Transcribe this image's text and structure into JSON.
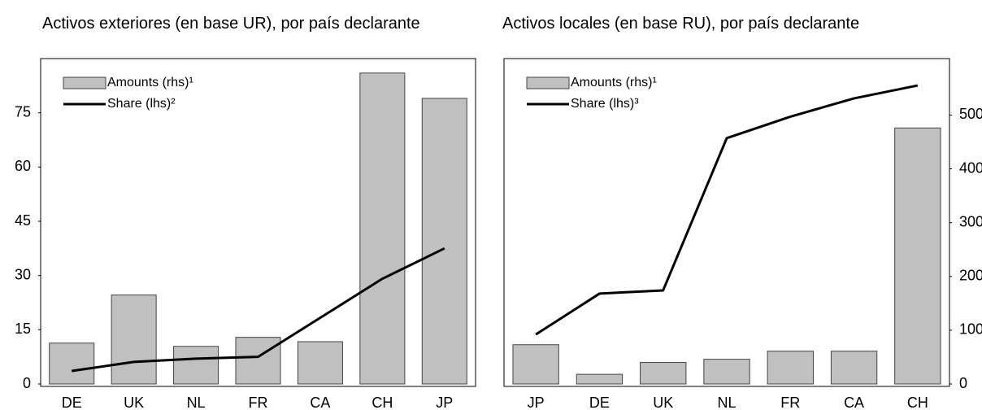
{
  "chart_data": [
    {
      "type": "combo",
      "title": "Activos exteriores (en base UR), por país declarante",
      "categories": [
        "DE",
        "UK",
        "NL",
        "FR",
        "CA",
        "CH",
        "JP"
      ],
      "series": [
        {
          "name": "Amounts (rhs)¹",
          "type": "bar",
          "color": "#c0c0c0",
          "values": [
            11.3,
            24.6,
            10.4,
            12.9,
            11.7,
            86,
            79
          ]
        },
        {
          "name": "Share (lhs)²",
          "type": "line",
          "color": "#000000",
          "values": [
            3.6,
            6.1,
            7.0,
            7.5,
            18.3,
            29.1,
            37.5
          ]
        }
      ],
      "ylim": [
        0,
        90
      ],
      "yticks": [
        0,
        15,
        30,
        45,
        60,
        75
      ],
      "axis_side": "left",
      "legend": "upper left"
    },
    {
      "type": "combo",
      "title": "Activos locales (en base RU), por país declarante",
      "categories": [
        "JP",
        "DE",
        "UK",
        "NL",
        "FR",
        "CA",
        "CH"
      ],
      "series": [
        {
          "name": "Amounts (rhs)¹",
          "type": "bar",
          "color": "#c0c0c0",
          "values": [
            73,
            18,
            40,
            46,
            61,
            61,
            476
          ]
        },
        {
          "name": "Share (lhs)³",
          "type": "line",
          "color": "#000000",
          "values": [
            92,
            168,
            174,
            457,
            497,
            531,
            555
          ]
        }
      ],
      "ylim": [
        0,
        605
      ],
      "yticks": [
        0,
        100,
        200,
        300,
        400,
        500
      ],
      "axis_side": "right",
      "legend": "upper left"
    }
  ]
}
